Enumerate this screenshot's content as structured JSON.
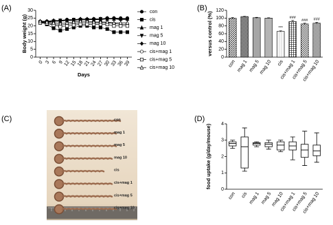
{
  "panel_labels": [
    "(A)",
    "(B)",
    "(C)",
    "(D)"
  ],
  "photo": {
    "labels": [
      "con",
      "mag 1",
      "mag 5",
      "mag 10",
      "cis",
      "cis+mag 1",
      "cis+mag 5",
      "cis+mag 10"
    ]
  },
  "chart_data": [
    {
      "type": "line",
      "x_label": "Days",
      "y_label": "Body weight (g)",
      "x": [
        0,
        3,
        6,
        9,
        12,
        15,
        18,
        21,
        24,
        27,
        30,
        33,
        36,
        39
      ],
      "xlim": [
        -2,
        41
      ],
      "xticks": [
        0,
        3,
        6,
        9,
        12,
        15,
        18,
        21,
        24,
        27,
        30,
        33,
        36,
        39
      ],
      "ylim": [
        0,
        30
      ],
      "yticks": [
        0,
        5,
        10,
        15,
        20,
        25,
        30
      ],
      "legend": "right",
      "series": [
        {
          "name": "con",
          "color": "#000000",
          "marker": "circle",
          "values": [
            22.5,
            23,
            23,
            23.5,
            24,
            24,
            24,
            24,
            24.5,
            24.5,
            25,
            25,
            25,
            25
          ]
        },
        {
          "name": "cis",
          "color": "#000000",
          "marker": "square",
          "values": [
            22.5,
            21,
            18.5,
            17,
            18,
            19,
            20,
            20,
            19,
            19,
            18,
            16,
            16,
            16
          ]
        },
        {
          "name": "mag 1",
          "color": "#000000",
          "marker": "triangle",
          "values": [
            22,
            22.5,
            23,
            23,
            23.5,
            23.5,
            24,
            24,
            24,
            24,
            24.5,
            24.5,
            24.5,
            24.5
          ]
        },
        {
          "name": "mag 5",
          "color": "#000000",
          "marker": "triangle-down",
          "values": [
            22.5,
            22.5,
            23,
            23.5,
            23.5,
            24,
            24,
            24,
            24,
            24.5,
            24.5,
            24.5,
            24,
            24
          ]
        },
        {
          "name": "mag 10",
          "color": "#000000",
          "marker": "diamond",
          "values": [
            23,
            23,
            23.5,
            23.5,
            24,
            24,
            24.5,
            24.5,
            24.5,
            24.5,
            25,
            25,
            24.5,
            24.5
          ]
        },
        {
          "name": "cis+mag 1",
          "color": "#000000",
          "marker": "circle-open",
          "values": [
            22.5,
            22,
            21,
            20.5,
            21,
            21.5,
            22,
            22,
            22,
            22,
            22,
            21.5,
            21,
            21
          ]
        },
        {
          "name": "cis+mag 5",
          "color": "#000000",
          "marker": "square-open",
          "values": [
            22,
            21.5,
            20.5,
            19.5,
            20,
            20.5,
            21,
            21,
            21,
            21,
            21,
            20,
            20,
            20
          ]
        },
        {
          "name": "cis+mag 10",
          "color": "#000000",
          "marker": "triangle-open",
          "values": [
            23,
            22.5,
            22,
            21.5,
            22,
            22.5,
            23,
            23,
            22.5,
            22.5,
            22.5,
            22,
            22,
            22
          ]
        }
      ]
    },
    {
      "type": "bar",
      "y_label": "versus control (%)",
      "categories": [
        "con",
        "mag 1",
        "mag 5",
        "mag 10",
        "cis",
        "cis+mag 1",
        "cis+mag 5",
        "cis+mag 10"
      ],
      "values": [
        100,
        104,
        101,
        100,
        66,
        91,
        85,
        87
      ],
      "errors": [
        1.5,
        1,
        1,
        1,
        1.5,
        3,
        2,
        2.5
      ],
      "patterns": [
        "diag",
        "check",
        "hlines",
        "fine",
        "vlines",
        "grid",
        "cross",
        "dense"
      ],
      "ylim": [
        0,
        120
      ],
      "yticks": [
        0,
        20,
        40,
        60,
        80,
        100,
        120
      ],
      "annotations": [
        {
          "category": "cis",
          "text": "***"
        },
        {
          "category": "cis+mag 1",
          "text": "###"
        },
        {
          "category": "cis+mag 5",
          "text": "###"
        },
        {
          "category": "cis+mag 10",
          "text": "###"
        }
      ]
    },
    {
      "type": "box",
      "y_label": "food uptake (g/day/mouse)",
      "categories": [
        "con",
        "cis",
        "mag 1",
        "mag 5",
        "mag 10",
        "cis+mag 1",
        "cis+mag 5",
        "cis+mag 10"
      ],
      "boxes": [
        {
          "min": 2.5,
          "q1": 2.65,
          "median": 2.8,
          "q3": 2.9,
          "max": 3.0
        },
        {
          "min": 1.1,
          "q1": 1.3,
          "median": 2.6,
          "q3": 3.2,
          "max": 3.75
        },
        {
          "min": 2.6,
          "q1": 2.7,
          "median": 2.8,
          "q3": 2.85,
          "max": 2.9
        },
        {
          "min": 2.45,
          "q1": 2.6,
          "median": 2.75,
          "q3": 2.85,
          "max": 3.0
        },
        {
          "min": 2.3,
          "q1": 2.4,
          "median": 2.7,
          "q3": 2.9,
          "max": 3.0
        },
        {
          "min": 1.8,
          "q1": 2.4,
          "median": 2.65,
          "q3": 2.9,
          "max": 3.2
        },
        {
          "min": 1.45,
          "q1": 1.95,
          "median": 2.4,
          "q3": 2.75,
          "max": 3.55
        },
        {
          "min": 1.65,
          "q1": 2.05,
          "median": 2.35,
          "q3": 2.7,
          "max": 3.45
        }
      ],
      "ylim": [
        0,
        4
      ],
      "yticks": [
        0,
        1,
        2,
        3,
        4
      ]
    }
  ]
}
